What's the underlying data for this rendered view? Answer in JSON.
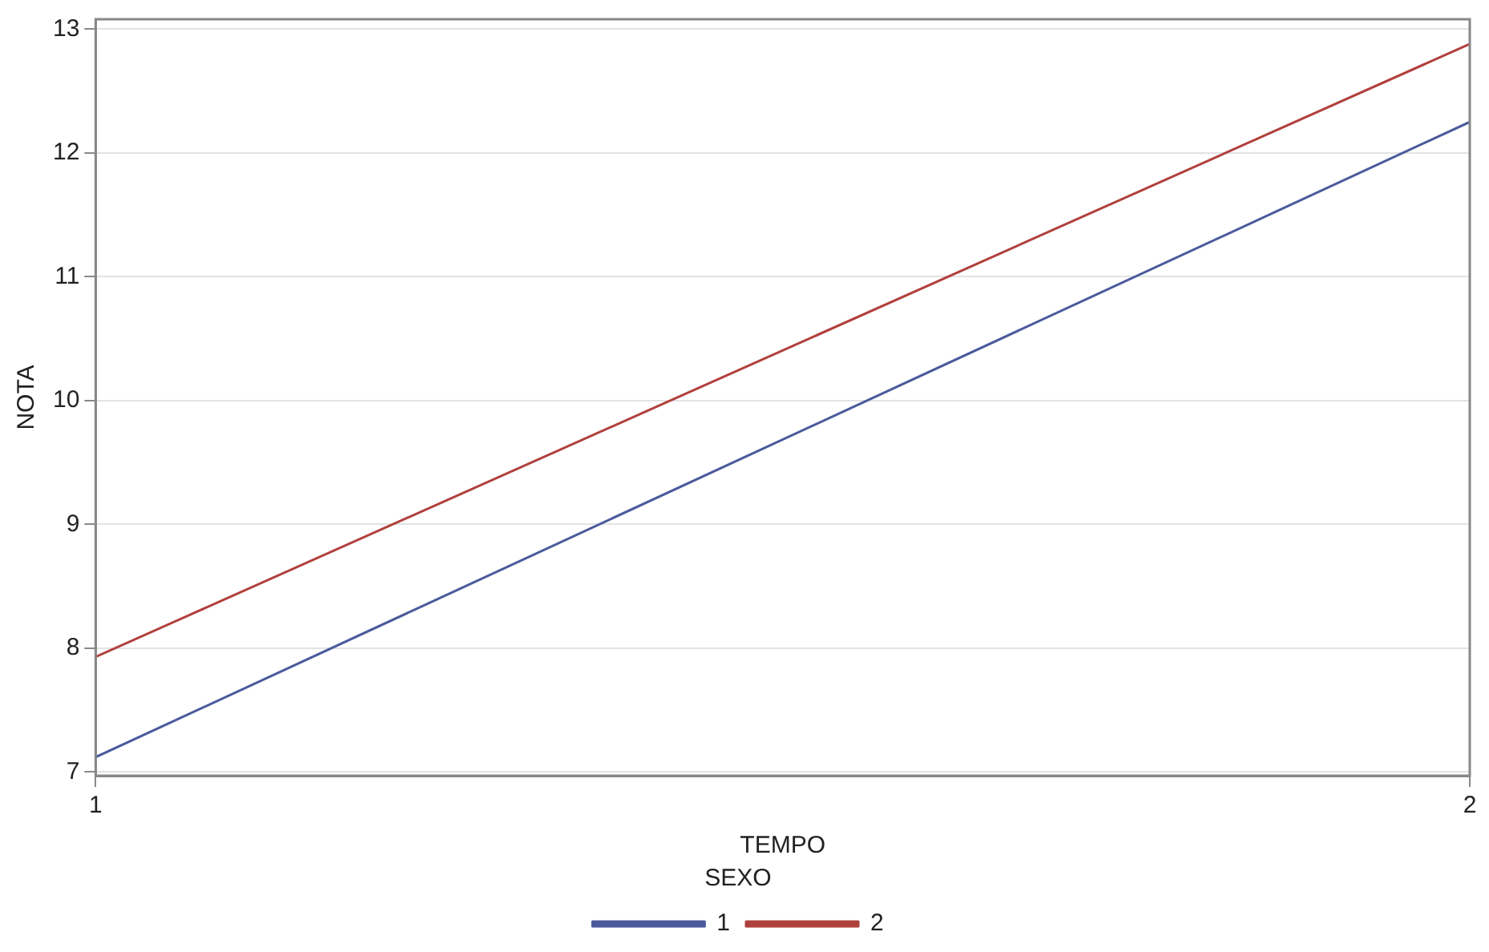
{
  "chart_data": {
    "type": "line",
    "xlabel": "TEMPO",
    "ylabel": "NOTA",
    "legend_title": "SEXO",
    "x": [
      1,
      2
    ],
    "series": [
      {
        "name": "1",
        "color": "#4a5a9c",
        "values": [
          7.12,
          12.25
        ]
      },
      {
        "name": "2",
        "color": "#b0403c",
        "values": [
          7.93,
          12.88
        ]
      }
    ],
    "xlim": [
      1,
      2
    ],
    "xticks": [
      1,
      2
    ],
    "ylim": [
      6.97,
      13.08
    ],
    "yticks": [
      7,
      8,
      9,
      10,
      11,
      12,
      13
    ],
    "grid": "y",
    "legend": "bottom",
    "marker": "none",
    "line_style": "solid"
  }
}
